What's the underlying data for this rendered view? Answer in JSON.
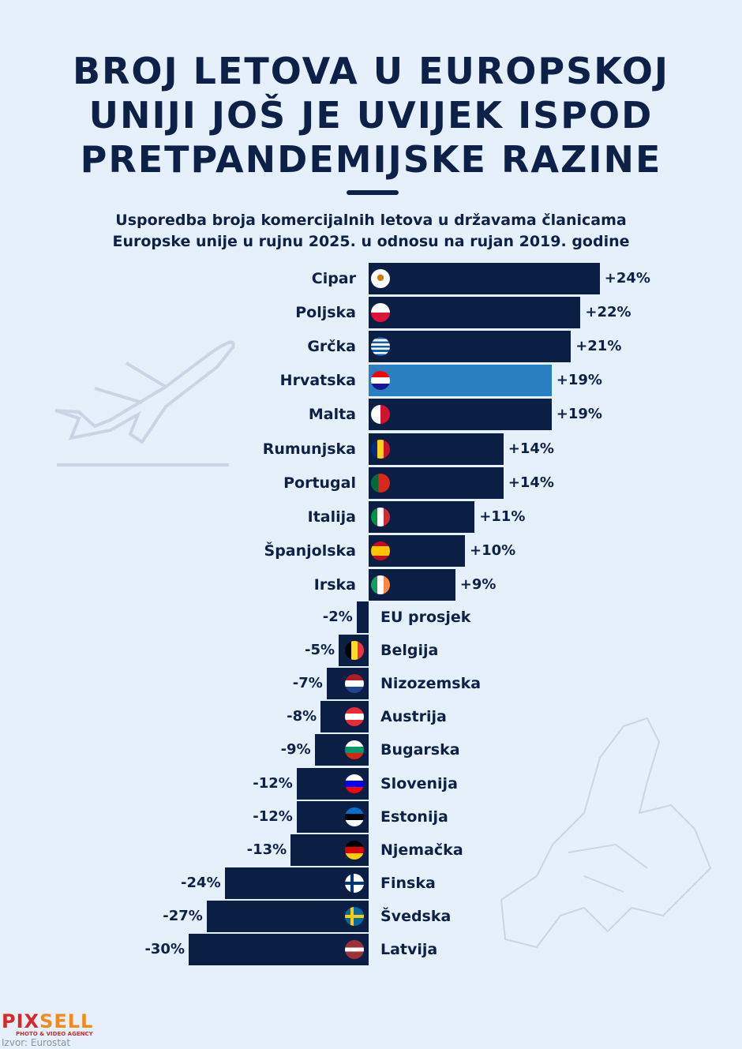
{
  "title_lines": [
    "BROJ LETOVA U EUROPSKOJ",
    "UNIJI JOŠ JE UVIJEK ISPOD",
    "PRETPANDEMIJSKE RAZINE"
  ],
  "subtitle_lines": [
    "Usporedba broja komercijalnih letova u državama članicama",
    "Europske unije u rujnu 2025. u odnosu na rujan 2019. godine"
  ],
  "colors": {
    "bar": "#0b1f45",
    "highlight": "#2a7fc0",
    "background": "#e6f0fb"
  },
  "chart_data": {
    "type": "bar",
    "orientation": "horizontal",
    "unit": "%",
    "title": "Broj letova u Europskoj uniji još je uvijek ispod pretpandemijske razine",
    "categories": [
      "Cipar",
      "Poljska",
      "Grčka",
      "Hrvatska",
      "Malta",
      "Rumunjska",
      "Portugal",
      "Italija",
      "Španjolska",
      "Irska",
      "EU prosjek",
      "Belgija",
      "Nizozemska",
      "Austrija",
      "Bugarska",
      "Slovenija",
      "Estonija",
      "Njemačka",
      "Finska",
      "Švedska",
      "Latvija"
    ],
    "values": [
      24,
      22,
      21,
      19,
      19,
      14,
      14,
      11,
      10,
      9,
      -2,
      -5,
      -7,
      -8,
      -9,
      -12,
      -12,
      -13,
      -24,
      -27,
      -30
    ],
    "labels": [
      "+24%",
      "+22%",
      "+21%",
      "+19%",
      "+19%",
      "+14%",
      "+14%",
      "+11%",
      "+10%",
      "+9%",
      "-2%",
      "-5%",
      "-7%",
      "-8%",
      "-9%",
      "-12%",
      "-12%",
      "-13%",
      "-24%",
      "-27%",
      "-30%"
    ],
    "highlight": "Hrvatska"
  },
  "logo": {
    "part1": "PIX",
    "part2": "SELL",
    "tagline": "PHOTO & VIDEO AGENCY"
  },
  "source": "Izvor: Eurostat"
}
